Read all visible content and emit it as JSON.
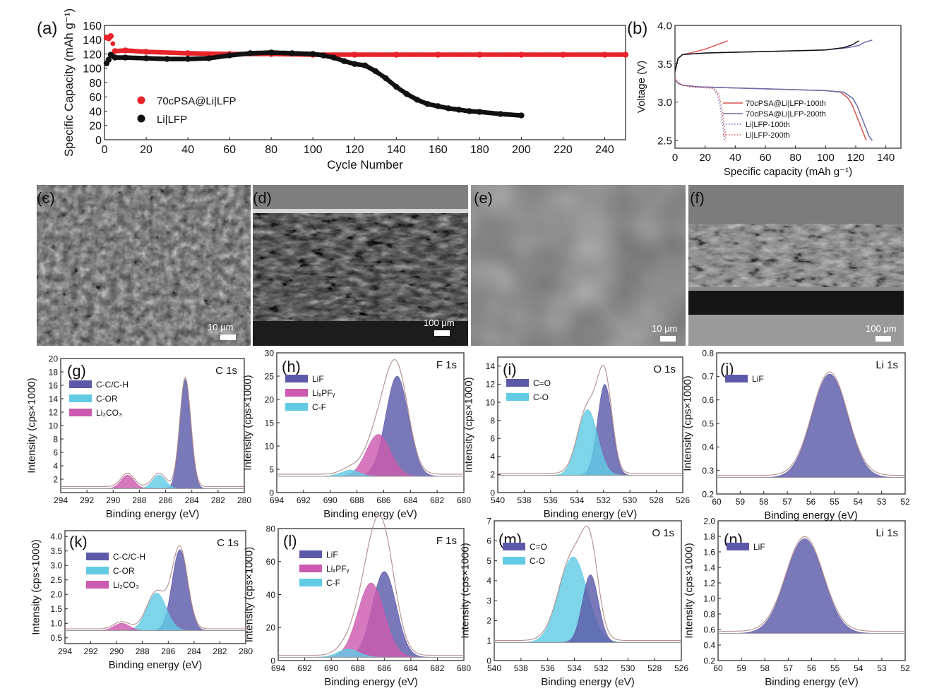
{
  "figure": {
    "panel_labels": {
      "c": "(c)",
      "d": "(d)",
      "e": "(e)",
      "f": "(f)"
    },
    "sem": {
      "c": {
        "scalebar": "10 μm"
      },
      "d": {
        "scalebar": "100 μm"
      },
      "e": {
        "scalebar": "10 μm"
      },
      "f": {
        "scalebar": "100 μm"
      }
    }
  },
  "colors": {
    "red": "#e8242a",
    "black": "#111111",
    "navy": "#5c5aa8",
    "cyan": "#62cbe4",
    "magenta": "#cc5aae",
    "navy_line": "#6a6ab0",
    "red_line": "#d9534f",
    "envelope": "#b58c8c"
  },
  "chart_data": [
    {
      "id": "a",
      "label": "(a)",
      "type": "scatter",
      "xlabel": "Cycle Number",
      "ylabel": "Specific Capacity (mAh g⁻¹)",
      "xlim": [
        0,
        250
      ],
      "ylim": [
        0,
        160
      ],
      "xticks": [
        0,
        20,
        40,
        60,
        80,
        100,
        120,
        140,
        160,
        180,
        200,
        220,
        240
      ],
      "yticks": [
        0,
        20,
        40,
        60,
        80,
        100,
        120,
        140,
        160
      ],
      "series": [
        {
          "name": "70cPSA@Li|LFP",
          "color": "red",
          "x": [
            1,
            2,
            3,
            5,
            10,
            20,
            40,
            60,
            80,
            100,
            120,
            140,
            160,
            180,
            200,
            220,
            240,
            250
          ],
          "y": [
            143,
            142,
            145,
            124,
            125,
            123,
            121,
            120,
            120,
            119,
            119,
            119,
            119,
            119,
            119,
            119,
            119,
            119
          ]
        },
        {
          "name": "Li|LFP",
          "color": "black",
          "x": [
            1,
            2,
            3,
            5,
            10,
            20,
            30,
            40,
            50,
            60,
            70,
            80,
            90,
            100,
            105,
            110,
            115,
            120,
            125,
            130,
            135,
            140,
            145,
            150,
            155,
            160,
            165,
            170,
            175,
            180,
            190,
            200
          ],
          "y": [
            107,
            112,
            119,
            115,
            115,
            114,
            113,
            113,
            114,
            118,
            121,
            122,
            121,
            120,
            118,
            115,
            110,
            106,
            104,
            96,
            86,
            74,
            64,
            56,
            50,
            47,
            44,
            42,
            40,
            39,
            36,
            34
          ]
        }
      ]
    },
    {
      "id": "b",
      "label": "(b)",
      "type": "line",
      "xlabel": "Specific capacity (mAh g⁻¹)",
      "ylabel": "Voltage (V)",
      "xlim": [
        0,
        150
      ],
      "ylim": [
        2.4,
        4.0
      ],
      "xticks": [
        0,
        20,
        40,
        60,
        80,
        100,
        120,
        140
      ],
      "yticks": [
        2.5,
        3.0,
        3.5,
        4.0
      ],
      "yticklabels": [
        "2.5",
        "3.0",
        "3.5",
        "4.0"
      ],
      "series": [
        {
          "name": "70cPSA@Li|LFP-100th",
          "color": "red_line",
          "style": "solid",
          "x": [
            0,
            2,
            5,
            15,
            50,
            100,
            110,
            115,
            118,
            121,
            124,
            126,
            127
          ],
          "y": [
            3.3,
            3.25,
            3.22,
            3.2,
            3.18,
            3.15,
            3.13,
            3.05,
            2.95,
            2.8,
            2.65,
            2.55,
            2.5
          ]
        },
        {
          "name": "70cPSA@Li|LFP-200th",
          "color": "navy_line",
          "style": "solid",
          "x": [
            0,
            2,
            5,
            15,
            50,
            100,
            112,
            118,
            121,
            124,
            127,
            129,
            131
          ],
          "y": [
            3.3,
            3.25,
            3.22,
            3.2,
            3.18,
            3.15,
            3.13,
            3.05,
            2.95,
            2.8,
            2.65,
            2.55,
            2.5
          ]
        },
        {
          "name": "Li|LFP-100th",
          "color": "navy_line",
          "style": "dotted",
          "x": [
            0,
            2,
            10,
            25,
            28,
            30,
            31,
            32,
            33
          ],
          "y": [
            3.3,
            3.24,
            3.2,
            3.18,
            3.1,
            2.95,
            2.8,
            2.65,
            2.5
          ]
        },
        {
          "name": "Li|LFP-200th",
          "color": "red_line",
          "style": "dotted",
          "x": [
            0,
            2,
            10,
            26,
            29,
            31,
            32,
            33,
            34
          ],
          "y": [
            3.3,
            3.24,
            3.2,
            3.18,
            3.1,
            2.95,
            2.8,
            2.65,
            2.5
          ]
        },
        {
          "name": "70cPSA@Li|LFP-100th charge",
          "color": "red_line",
          "style": "solid",
          "legend": false,
          "x": [
            0,
            2,
            5,
            10,
            20,
            35
          ],
          "y": [
            3.4,
            3.57,
            3.62,
            3.64,
            3.69,
            3.8
          ]
        },
        {
          "name": "70cPSA@Li|LFP-200th charge",
          "color": "navy_line",
          "style": "solid",
          "legend": false,
          "x": [
            0,
            2,
            5,
            20,
            60,
            100,
            115,
            122,
            126,
            131
          ],
          "y": [
            3.4,
            3.57,
            3.62,
            3.64,
            3.66,
            3.68,
            3.71,
            3.74,
            3.78,
            3.81
          ]
        },
        {
          "name": "Li|LFP-100th charge",
          "color": "black",
          "style": "solid",
          "legend": false,
          "x": [
            0,
            2,
            5,
            20,
            60,
            100,
            112,
            118,
            122
          ],
          "y": [
            3.4,
            3.57,
            3.62,
            3.64,
            3.66,
            3.68,
            3.71,
            3.75,
            3.8
          ]
        }
      ]
    },
    {
      "id": "g",
      "label": "(g)",
      "type": "area",
      "core": "C 1s",
      "xlabel": "Binding energy (eV)",
      "ylabel": "Intensity (cps×1000)",
      "xlim": [
        294,
        280
      ],
      "ylim": [
        0,
        20
      ],
      "xticks": [
        294,
        292,
        290,
        288,
        286,
        284,
        282,
        280
      ],
      "yticks": [
        2,
        4,
        6,
        8,
        10,
        12,
        14,
        16,
        18,
        20
      ],
      "baseline": 0.6,
      "peaks": [
        {
          "name": "C-C/C-H",
          "label": "C-C/C-H",
          "color": "navy",
          "center": 284.5,
          "height": 16.3,
          "sigma": 0.42
        },
        {
          "name": "C-OR",
          "label": "C-OR",
          "color": "cyan",
          "center": 286.5,
          "height": 2.0,
          "sigma": 0.5
        },
        {
          "name": "Li2CO3",
          "label": "Li₂CO₃",
          "color": "magenta",
          "center": 288.9,
          "height": 2.0,
          "sigma": 0.5
        }
      ]
    },
    {
      "id": "h",
      "label": "(h)",
      "type": "area",
      "core": "F 1s",
      "xlabel": "Binding energy (eV)",
      "ylabel": "Intensity (cps×1000)",
      "xlim": [
        694,
        680
      ],
      "ylim": [
        0,
        30
      ],
      "xticks": [
        694,
        692,
        690,
        688,
        686,
        684,
        682,
        680
      ],
      "yticks": [
        0,
        5,
        10,
        15,
        20,
        25,
        30
      ],
      "baseline": 3.5,
      "peaks": [
        {
          "name": "LiF",
          "label": "LiF",
          "color": "navy",
          "center": 685.0,
          "height": 21.5,
          "sigma": 0.85
        },
        {
          "name": "LixPFy",
          "label": "LiₓPFᵧ",
          "color": "magenta",
          "center": 686.4,
          "height": 9.0,
          "sigma": 0.9
        },
        {
          "name": "C-F",
          "label": "C-F",
          "color": "cyan",
          "center": 688.5,
          "height": 1.3,
          "sigma": 0.7
        }
      ]
    },
    {
      "id": "i",
      "label": "(i)",
      "type": "area",
      "core": "O 1s",
      "xlabel": "Binding energy (eV)",
      "ylabel": "Intensity (cps×1000)",
      "xlim": [
        540,
        526
      ],
      "ylim": [
        0,
        15
      ],
      "xticks": [
        540,
        538,
        536,
        534,
        532,
        530,
        528,
        526
      ],
      "yticks": [
        0,
        2,
        4,
        6,
        8,
        10,
        12,
        14
      ],
      "baseline": 1.9,
      "peaks": [
        {
          "name": "C=O",
          "label": "C=O",
          "color": "navy",
          "center": 531.9,
          "height": 10.1,
          "sigma": 0.55
        },
        {
          "name": "C-O",
          "label": "C-O",
          "color": "cyan",
          "center": 533.2,
          "height": 7.3,
          "sigma": 0.75
        }
      ]
    },
    {
      "id": "j",
      "label": "(j)",
      "type": "area",
      "core": "Li 1s",
      "xlabel": "Binding energy (eV)",
      "ylabel": "Intensity (cps×1000)",
      "xlim": [
        60,
        52
      ],
      "ylim": [
        0.2,
        0.8
      ],
      "xticks": [
        60,
        59,
        58,
        57,
        56,
        55,
        54,
        53,
        52
      ],
      "yticks": [
        0.2,
        0.3,
        0.4,
        0.5,
        0.6,
        0.7,
        0.8
      ],
      "baseline": 0.27,
      "peaks": [
        {
          "name": "LiF",
          "label": "LiF",
          "color": "navy",
          "center": 55.2,
          "height": 0.44,
          "sigma": 0.75
        }
      ]
    },
    {
      "id": "k",
      "label": "(k)",
      "type": "area",
      "core": "C 1s",
      "xlabel": "Binding energy (eV)",
      "ylabel": "Intensity (cps×1000)",
      "xlim": [
        294,
        280
      ],
      "ylim": [
        0.3,
        4.2
      ],
      "xticks": [
        294,
        292,
        290,
        288,
        286,
        284,
        282,
        280
      ],
      "yticks": [
        0.5,
        1.0,
        1.5,
        2.0,
        2.5,
        3.0,
        3.5,
        4.0
      ],
      "yticklabels": [
        "0.5",
        "1.0",
        "1.5",
        "2.0",
        "2.5",
        "3.0",
        "3.5",
        "4.0"
      ],
      "baseline": 0.75,
      "peaks": [
        {
          "name": "C-C/C-H",
          "label": "C-C/C-H",
          "color": "navy",
          "center": 285.1,
          "height": 2.8,
          "sigma": 0.6
        },
        {
          "name": "C-OR",
          "label": "C-OR",
          "color": "cyan",
          "center": 286.9,
          "height": 1.3,
          "sigma": 0.75
        },
        {
          "name": "Li2CO3",
          "label": "Li₂CO₃",
          "color": "magenta",
          "center": 289.6,
          "height": 0.25,
          "sigma": 0.6
        }
      ]
    },
    {
      "id": "l",
      "label": "(l)",
      "type": "area",
      "core": "F 1s",
      "xlabel": "Binding energy (eV)",
      "ylabel": "Intensity (cps×1000)",
      "xlim": [
        694,
        680
      ],
      "ylim": [
        0,
        80
      ],
      "xticks": [
        694,
        692,
        690,
        688,
        686,
        684,
        682,
        680
      ],
      "yticks": [
        0,
        20,
        40,
        60,
        80
      ],
      "baseline": 2.0,
      "peaks": [
        {
          "name": "LiF",
          "label": "LiF",
          "color": "navy",
          "center": 686.0,
          "height": 52,
          "sigma": 0.9
        },
        {
          "name": "LixPFy",
          "label": "LiₓPFᵧ",
          "color": "magenta",
          "center": 687.0,
          "height": 45,
          "sigma": 1.0
        },
        {
          "name": "C-F",
          "label": "C-F",
          "color": "cyan",
          "center": 688.7,
          "height": 5.0,
          "sigma": 0.8
        }
      ]
    },
    {
      "id": "m",
      "label": "(m)",
      "type": "area",
      "core": "O 1s",
      "xlabel": "Binding energy (eV)",
      "ylabel": "Intensity (cps×1000)",
      "xlim": [
        540,
        526
      ],
      "ylim": [
        0,
        7
      ],
      "xticks": [
        540,
        538,
        536,
        534,
        532,
        530,
        528,
        526
      ],
      "yticks": [
        0,
        1,
        2,
        3,
        4,
        5,
        6,
        7
      ],
      "baseline": 0.9,
      "peaks": [
        {
          "name": "C=O",
          "label": "C=O",
          "color": "navy",
          "center": 532.8,
          "height": 3.4,
          "sigma": 0.6
        },
        {
          "name": "C-O",
          "label": "C-O",
          "color": "cyan",
          "center": 534.1,
          "height": 4.3,
          "sigma": 1.05
        }
      ]
    },
    {
      "id": "n",
      "label": "(n)",
      "type": "area",
      "core": "Li 1s",
      "xlabel": "Binding energy (eV)",
      "ylabel": "Intensity (cps×1000)",
      "xlim": [
        60,
        52
      ],
      "ylim": [
        0.2,
        2.0
      ],
      "xticks": [
        60,
        59,
        58,
        57,
        56,
        55,
        54,
        53,
        52
      ],
      "yticks": [
        0.2,
        0.4,
        0.6,
        0.8,
        1.0,
        1.2,
        1.4,
        1.6,
        1.8,
        2.0
      ],
      "yticklabels": [
        "0.2",
        "0.4",
        "0.6",
        "0.8",
        "1.0",
        "1.2",
        "1.4",
        "1.6",
        "1.8",
        "2.0"
      ],
      "baseline": 0.55,
      "peaks": [
        {
          "name": "LiF",
          "label": "LiF",
          "color": "navy",
          "center": 56.3,
          "height": 1.22,
          "sigma": 0.8
        }
      ]
    }
  ]
}
